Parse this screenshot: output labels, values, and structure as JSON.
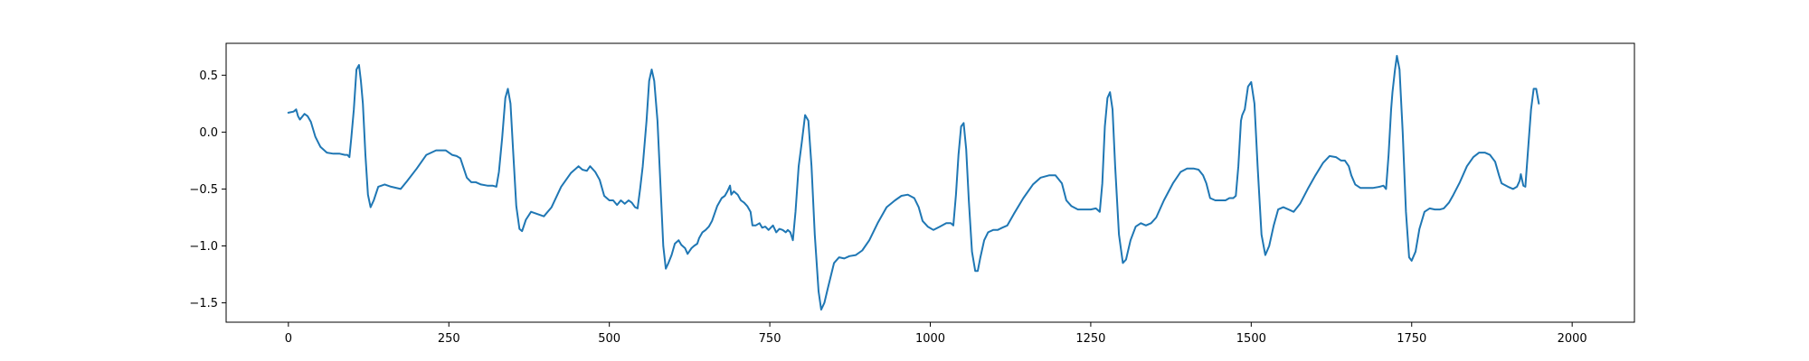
{
  "chart_data": {
    "type": "line",
    "title": "",
    "xlabel": "",
    "ylabel": "",
    "xlim": [
      -97,
      2097
    ],
    "ylim": [
      -1.67,
      0.78
    ],
    "x_ticks": [
      0,
      250,
      500,
      750,
      1000,
      1250,
      1500,
      1750,
      2000
    ],
    "y_ticks": [
      -1.5,
      -1.0,
      -0.5,
      0.0,
      0.5
    ],
    "grid": false,
    "colors": {
      "series": "#1f77b4"
    },
    "series": [
      {
        "points": [
          [
            0,
            0.17
          ],
          [
            8,
            0.18
          ],
          [
            12,
            0.2
          ],
          [
            15,
            0.14
          ],
          [
            18,
            0.11
          ],
          [
            25,
            0.16
          ],
          [
            30,
            0.14
          ],
          [
            35,
            0.09
          ],
          [
            42,
            -0.04
          ],
          [
            50,
            -0.13
          ],
          [
            60,
            -0.18
          ],
          [
            70,
            -0.19
          ],
          [
            80,
            -0.19
          ],
          [
            88,
            -0.2
          ],
          [
            92,
            -0.2
          ],
          [
            95,
            -0.22
          ],
          [
            98,
            -0.05
          ],
          [
            102,
            0.2
          ],
          [
            106,
            0.55
          ],
          [
            110,
            0.59
          ],
          [
            113,
            0.45
          ],
          [
            116,
            0.25
          ],
          [
            120,
            -0.2
          ],
          [
            124,
            -0.55
          ],
          [
            128,
            -0.66
          ],
          [
            133,
            -0.6
          ],
          [
            140,
            -0.48
          ],
          [
            150,
            -0.46
          ],
          [
            160,
            -0.48
          ],
          [
            175,
            -0.5
          ],
          [
            185,
            -0.43
          ],
          [
            200,
            -0.32
          ],
          [
            215,
            -0.2
          ],
          [
            230,
            -0.16
          ],
          [
            245,
            -0.16
          ],
          [
            255,
            -0.2
          ],
          [
            262,
            -0.21
          ],
          [
            268,
            -0.23
          ],
          [
            278,
            -0.4
          ],
          [
            285,
            -0.44
          ],
          [
            292,
            -0.44
          ],
          [
            300,
            -0.46
          ],
          [
            310,
            -0.47
          ],
          [
            318,
            -0.47
          ],
          [
            324,
            -0.48
          ],
          [
            328,
            -0.35
          ],
          [
            333,
            -0.05
          ],
          [
            338,
            0.3
          ],
          [
            342,
            0.38
          ],
          [
            346,
            0.25
          ],
          [
            350,
            -0.15
          ],
          [
            355,
            -0.65
          ],
          [
            360,
            -0.85
          ],
          [
            364,
            -0.87
          ],
          [
            370,
            -0.77
          ],
          [
            378,
            -0.7
          ],
          [
            388,
            -0.72
          ],
          [
            398,
            -0.74
          ],
          [
            410,
            -0.66
          ],
          [
            425,
            -0.48
          ],
          [
            440,
            -0.36
          ],
          [
            452,
            -0.3
          ],
          [
            458,
            -0.33
          ],
          [
            465,
            -0.34
          ],
          [
            470,
            -0.3
          ],
          [
            478,
            -0.35
          ],
          [
            485,
            -0.42
          ],
          [
            492,
            -0.56
          ],
          [
            500,
            -0.6
          ],
          [
            506,
            -0.6
          ],
          [
            512,
            -0.64
          ],
          [
            518,
            -0.6
          ],
          [
            524,
            -0.63
          ],
          [
            530,
            -0.6
          ],
          [
            535,
            -0.62
          ],
          [
            540,
            -0.66
          ],
          [
            544,
            -0.67
          ],
          [
            548,
            -0.5
          ],
          [
            552,
            -0.3
          ],
          [
            558,
            0.1
          ],
          [
            562,
            0.45
          ],
          [
            566,
            0.55
          ],
          [
            570,
            0.45
          ],
          [
            575,
            0.1
          ],
          [
            580,
            -0.5
          ],
          [
            584,
            -1.0
          ],
          [
            588,
            -1.2
          ],
          [
            592,
            -1.15
          ],
          [
            597,
            -1.08
          ],
          [
            602,
            -0.98
          ],
          [
            608,
            -0.95
          ],
          [
            612,
            -0.99
          ],
          [
            618,
            -1.02
          ],
          [
            622,
            -1.07
          ],
          [
            628,
            -1.02
          ],
          [
            632,
            -1.0
          ],
          [
            637,
            -0.98
          ],
          [
            640,
            -0.93
          ],
          [
            645,
            -0.88
          ],
          [
            650,
            -0.86
          ],
          [
            655,
            -0.83
          ],
          [
            660,
            -0.78
          ],
          [
            668,
            -0.65
          ],
          [
            675,
            -0.58
          ],
          [
            680,
            -0.56
          ],
          [
            684,
            -0.52
          ],
          [
            688,
            -0.47
          ],
          [
            690,
            -0.55
          ],
          [
            694,
            -0.52
          ],
          [
            700,
            -0.55
          ],
          [
            705,
            -0.6
          ],
          [
            710,
            -0.62
          ],
          [
            715,
            -0.65
          ],
          [
            720,
            -0.7
          ],
          [
            723,
            -0.82
          ],
          [
            728,
            -0.82
          ],
          [
            734,
            -0.8
          ],
          [
            738,
            -0.84
          ],
          [
            743,
            -0.83
          ],
          [
            748,
            -0.86
          ],
          [
            755,
            -0.82
          ],
          [
            760,
            -0.88
          ],
          [
            765,
            -0.85
          ],
          [
            770,
            -0.86
          ],
          [
            775,
            -0.88
          ],
          [
            778,
            -0.86
          ],
          [
            782,
            -0.88
          ],
          [
            786,
            -0.95
          ],
          [
            790,
            -0.7
          ],
          [
            795,
            -0.3
          ],
          [
            800,
            -0.08
          ],
          [
            805,
            0.15
          ],
          [
            810,
            0.1
          ],
          [
            815,
            -0.3
          ],
          [
            820,
            -0.9
          ],
          [
            826,
            -1.4
          ],
          [
            830,
            -1.56
          ],
          [
            835,
            -1.5
          ],
          [
            840,
            -1.38
          ],
          [
            850,
            -1.15
          ],
          [
            858,
            -1.1
          ],
          [
            866,
            -1.11
          ],
          [
            874,
            -1.09
          ],
          [
            884,
            -1.08
          ],
          [
            894,
            -1.04
          ],
          [
            905,
            -0.95
          ],
          [
            918,
            -0.8
          ],
          [
            932,
            -0.66
          ],
          [
            945,
            -0.6
          ],
          [
            955,
            -0.56
          ],
          [
            965,
            -0.55
          ],
          [
            975,
            -0.58
          ],
          [
            982,
            -0.66
          ],
          [
            988,
            -0.78
          ],
          [
            996,
            -0.83
          ],
          [
            1005,
            -0.86
          ],
          [
            1015,
            -0.83
          ],
          [
            1025,
            -0.8
          ],
          [
            1032,
            -0.8
          ],
          [
            1036,
            -0.82
          ],
          [
            1040,
            -0.55
          ],
          [
            1044,
            -0.2
          ],
          [
            1048,
            0.05
          ],
          [
            1052,
            0.08
          ],
          [
            1056,
            -0.15
          ],
          [
            1060,
            -0.6
          ],
          [
            1065,
            -1.05
          ],
          [
            1070,
            -1.22
          ],
          [
            1074,
            -1.22
          ],
          [
            1078,
            -1.1
          ],
          [
            1084,
            -0.95
          ],
          [
            1090,
            -0.88
          ],
          [
            1098,
            -0.86
          ],
          [
            1105,
            -0.86
          ],
          [
            1112,
            -0.84
          ],
          [
            1120,
            -0.82
          ],
          [
            1130,
            -0.72
          ],
          [
            1145,
            -0.58
          ],
          [
            1160,
            -0.46
          ],
          [
            1172,
            -0.4
          ],
          [
            1185,
            -0.38
          ],
          [
            1195,
            -0.38
          ],
          [
            1205,
            -0.45
          ],
          [
            1212,
            -0.6
          ],
          [
            1220,
            -0.65
          ],
          [
            1230,
            -0.68
          ],
          [
            1240,
            -0.68
          ],
          [
            1250,
            -0.68
          ],
          [
            1258,
            -0.67
          ],
          [
            1264,
            -0.7
          ],
          [
            1268,
            -0.45
          ],
          [
            1272,
            0.05
          ],
          [
            1276,
            0.3
          ],
          [
            1280,
            0.35
          ],
          [
            1284,
            0.2
          ],
          [
            1288,
            -0.3
          ],
          [
            1294,
            -0.9
          ],
          [
            1300,
            -1.15
          ],
          [
            1305,
            -1.12
          ],
          [
            1312,
            -0.95
          ],
          [
            1320,
            -0.83
          ],
          [
            1328,
            -0.8
          ],
          [
            1336,
            -0.82
          ],
          [
            1344,
            -0.8
          ],
          [
            1352,
            -0.75
          ],
          [
            1364,
            -0.6
          ],
          [
            1378,
            -0.45
          ],
          [
            1390,
            -0.35
          ],
          [
            1400,
            -0.32
          ],
          [
            1410,
            -0.32
          ],
          [
            1418,
            -0.33
          ],
          [
            1425,
            -0.38
          ],
          [
            1430,
            -0.45
          ],
          [
            1436,
            -0.58
          ],
          [
            1444,
            -0.6
          ],
          [
            1452,
            -0.6
          ],
          [
            1460,
            -0.6
          ],
          [
            1466,
            -0.58
          ],
          [
            1472,
            -0.58
          ],
          [
            1476,
            -0.56
          ],
          [
            1480,
            -0.3
          ],
          [
            1484,
            0.1
          ],
          [
            1486,
            0.15
          ],
          [
            1490,
            0.2
          ],
          [
            1495,
            0.4
          ],
          [
            1500,
            0.44
          ],
          [
            1505,
            0.25
          ],
          [
            1510,
            -0.3
          ],
          [
            1516,
            -0.9
          ],
          [
            1522,
            -1.08
          ],
          [
            1528,
            -1.0
          ],
          [
            1535,
            -0.82
          ],
          [
            1542,
            -0.68
          ],
          [
            1550,
            -0.66
          ],
          [
            1558,
            -0.68
          ],
          [
            1566,
            -0.7
          ],
          [
            1576,
            -0.63
          ],
          [
            1588,
            -0.5
          ],
          [
            1600,
            -0.38
          ],
          [
            1612,
            -0.27
          ],
          [
            1622,
            -0.21
          ],
          [
            1632,
            -0.22
          ],
          [
            1640,
            -0.25
          ],
          [
            1646,
            -0.25
          ],
          [
            1652,
            -0.3
          ],
          [
            1656,
            -0.38
          ],
          [
            1662,
            -0.46
          ],
          [
            1670,
            -0.49
          ],
          [
            1680,
            -0.49
          ],
          [
            1690,
            -0.49
          ],
          [
            1700,
            -0.48
          ],
          [
            1706,
            -0.47
          ],
          [
            1710,
            -0.5
          ],
          [
            1714,
            -0.2
          ],
          [
            1718,
            0.2
          ],
          [
            1720,
            0.35
          ],
          [
            1724,
            0.55
          ],
          [
            1727,
            0.67
          ],
          [
            1731,
            0.55
          ],
          [
            1736,
            0.0
          ],
          [
            1741,
            -0.7
          ],
          [
            1746,
            -1.1
          ],
          [
            1750,
            -1.13
          ],
          [
            1756,
            -1.05
          ],
          [
            1762,
            -0.85
          ],
          [
            1770,
            -0.7
          ],
          [
            1778,
            -0.67
          ],
          [
            1786,
            -0.68
          ],
          [
            1794,
            -0.68
          ],
          [
            1800,
            -0.67
          ],
          [
            1808,
            -0.62
          ],
          [
            1815,
            -0.55
          ],
          [
            1825,
            -0.44
          ],
          [
            1836,
            -0.3
          ],
          [
            1846,
            -0.22
          ],
          [
            1855,
            -0.18
          ],
          [
            1864,
            -0.18
          ],
          [
            1872,
            -0.2
          ],
          [
            1880,
            -0.26
          ],
          [
            1886,
            -0.38
          ],
          [
            1890,
            -0.45
          ],
          [
            1900,
            -0.48
          ],
          [
            1908,
            -0.5
          ],
          [
            1914,
            -0.48
          ],
          [
            1918,
            -0.43
          ],
          [
            1920,
            -0.37
          ],
          [
            1924,
            -0.47
          ],
          [
            1927,
            -0.48
          ],
          [
            1932,
            -0.1
          ],
          [
            1936,
            0.2
          ],
          [
            1940,
            0.38
          ],
          [
            1944,
            0.38
          ],
          [
            1948,
            0.25
          ]
        ]
      }
    ]
  }
}
